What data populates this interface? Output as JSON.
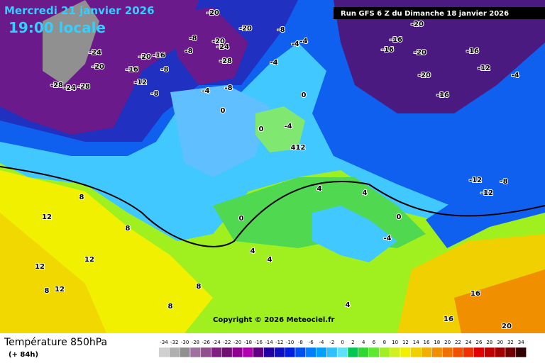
{
  "header": {
    "date": "Mercredi 21 janvier 2026",
    "time": "19:00 locale",
    "run": "Run GFS 6 Z du Dimanche 18 janvier 2026"
  },
  "copyright": "Copyright © 2026 Meteociel.fr",
  "footer": {
    "title": "Température 850hPa",
    "lead": "(+ 84h)"
  },
  "legend": [
    {
      "label": -34,
      "color": "#d0d0d0"
    },
    {
      "label": -32,
      "color": "#b0b0b0"
    },
    {
      "label": -30,
      "color": "#909090"
    },
    {
      "label": -28,
      "color": "#a070a0"
    },
    {
      "label": -26,
      "color": "#905090"
    },
    {
      "label": -24,
      "color": "#802080"
    },
    {
      "label": -22,
      "color": "#701070"
    },
    {
      "label": -20,
      "color": "#900090"
    },
    {
      "label": -18,
      "color": "#b000b0"
    },
    {
      "label": -16,
      "color": "#600080"
    },
    {
      "label": -14,
      "color": "#2000a0"
    },
    {
      "label": -12,
      "color": "#1010c0"
    },
    {
      "label": -10,
      "color": "#0020e0"
    },
    {
      "label": -8,
      "color": "#0050f0"
    },
    {
      "label": -6,
      "color": "#0080ff"
    },
    {
      "label": -4,
      "color": "#00a0ff"
    },
    {
      "label": -2,
      "color": "#30c0ff"
    },
    {
      "label": 0,
      "color": "#60e0ff"
    },
    {
      "label": 2,
      "color": "#00c850"
    },
    {
      "label": 4,
      "color": "#30d830"
    },
    {
      "label": 6,
      "color": "#60e830"
    },
    {
      "label": 8,
      "color": "#a0f020"
    },
    {
      "label": 10,
      "color": "#d0f020"
    },
    {
      "label": 12,
      "color": "#f0f000"
    },
    {
      "label": 14,
      "color": "#f0d000"
    },
    {
      "label": 16,
      "color": "#f0b000"
    },
    {
      "label": 18,
      "color": "#f09000"
    },
    {
      "label": 20,
      "color": "#f07000"
    },
    {
      "label": 22,
      "color": "#f05000"
    },
    {
      "label": 24,
      "color": "#f03000"
    },
    {
      "label": 26,
      "color": "#e00000"
    },
    {
      "label": 28,
      "color": "#c00000"
    },
    {
      "label": 30,
      "color": "#a00000"
    },
    {
      "label": 32,
      "color": "#700000"
    },
    {
      "label": 34,
      "color": "#300000"
    }
  ],
  "map_labels": [
    -28,
    -24,
    -28,
    -20,
    -20,
    -20,
    -24,
    -28,
    -8,
    -8,
    -8,
    -4,
    -4,
    -24,
    -20,
    -20,
    -16,
    -16,
    -8,
    -12,
    -8,
    -4,
    -8,
    -4,
    0,
    0,
    0,
    -4,
    412,
    -20,
    -16,
    -16,
    -20,
    -16,
    -12,
    -20,
    -16,
    -4,
    8,
    12,
    8,
    12,
    12,
    8,
    12,
    4,
    4,
    4,
    0,
    4,
    0,
    -4,
    -12,
    -8,
    -12,
    16,
    16,
    20,
    8,
    4,
    8
  ]
}
